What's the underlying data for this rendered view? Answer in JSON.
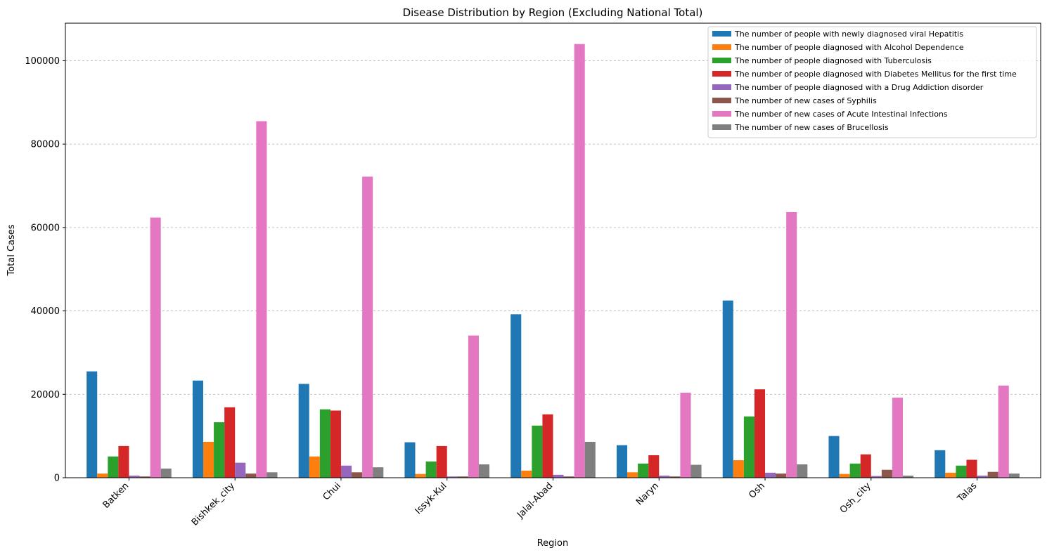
{
  "chart_data": {
    "type": "bar",
    "title": "Disease Distribution by Region (Excluding National Total)",
    "xlabel": "Region",
    "ylabel": "Total Cases",
    "ylim": [
      0,
      109000
    ],
    "yticks": [
      0,
      20000,
      40000,
      60000,
      80000,
      100000
    ],
    "grid": "y-dashed",
    "legend_position": "top-right",
    "categories": [
      "Batken",
      "Bishkek_city",
      "Chui",
      "Issyk-Kul",
      "Jalal-Abad",
      "Naryn",
      "Osh",
      "Osh_city",
      "Talas"
    ],
    "series": [
      {
        "name": "The number of people with newly diagnosed viral Hepatitis",
        "color": "#1f77b4",
        "values": [
          25500,
          23300,
          22500,
          8500,
          39200,
          7800,
          42500,
          10000,
          6600
        ]
      },
      {
        "name": "The number of people diagnosed with Alcohol Dependence",
        "color": "#ff7f0e",
        "values": [
          1000,
          8600,
          5100,
          900,
          1700,
          1300,
          4200,
          900,
          1200
        ]
      },
      {
        "name": "The number of people diagnosed with Tuberculosis",
        "color": "#2ca02c",
        "values": [
          5100,
          13300,
          16400,
          3900,
          12500,
          3400,
          14700,
          3400,
          2900
        ]
      },
      {
        "name": "The number of people diagnosed with Diabetes Mellitus for the first time",
        "color": "#d62728",
        "values": [
          7600,
          16900,
          16100,
          7600,
          15200,
          5400,
          21200,
          5600,
          4300
        ]
      },
      {
        "name": "The number of people diagnosed with a Drug Addiction disorder",
        "color": "#9467bd",
        "values": [
          500,
          3600,
          2900,
          300,
          700,
          500,
          1200,
          400,
          500
        ]
      },
      {
        "name": "The number of new cases of Syphilis",
        "color": "#8c564b",
        "values": [
          300,
          1000,
          1300,
          300,
          300,
          300,
          1000,
          1900,
          1400
        ]
      },
      {
        "name": "The number of new cases of Acute Intestinal Infections",
        "color": "#e377c2",
        "values": [
          62400,
          85500,
          72200,
          34100,
          104000,
          20400,
          63700,
          19200,
          22100
        ]
      },
      {
        "name": "The number of new cases of Brucellosis",
        "color": "#7f7f7f",
        "values": [
          2200,
          1300,
          2500,
          3200,
          8600,
          3100,
          3200,
          500,
          1000
        ]
      }
    ]
  }
}
